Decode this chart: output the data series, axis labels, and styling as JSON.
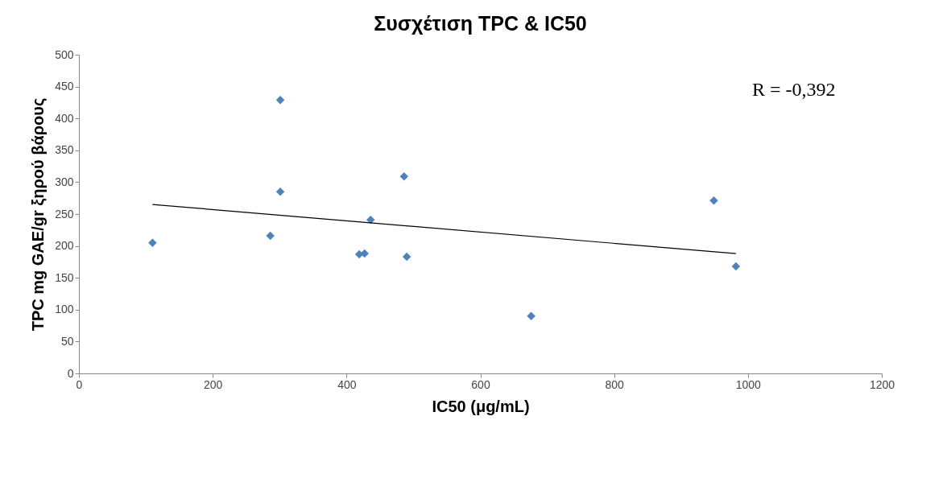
{
  "chart_data": {
    "type": "scatter",
    "title": "Συσχέτιση TPC & IC50",
    "xlabel": "IC50 (μg/mL)",
    "ylabel": "TPC mg GAE/gr ξηρού βάρους",
    "xlim": [
      0,
      1200
    ],
    "xticks": [
      0,
      200,
      400,
      600,
      800,
      1000,
      1200
    ],
    "ylim": [
      0,
      500
    ],
    "yticks": [
      0,
      50,
      100,
      150,
      200,
      250,
      300,
      350,
      400,
      450,
      500
    ],
    "grid": false,
    "marker": "diamond",
    "annotations": [
      "R = -0,392"
    ],
    "series": [
      {
        "color": "#4f81bd",
        "x": [
          110,
          301,
          301,
          286,
          486,
          436,
          419,
          427,
          490,
          676,
          949,
          982
        ],
        "values": [
          205,
          429,
          285,
          216,
          309,
          241,
          187,
          188,
          183,
          90,
          271,
          168
        ]
      },
      {
        "type": "line",
        "color": "#000000",
        "line_style": "solid",
        "marker": "none",
        "x": [
          110,
          982
        ],
        "values": [
          265,
          188
        ]
      }
    ]
  }
}
